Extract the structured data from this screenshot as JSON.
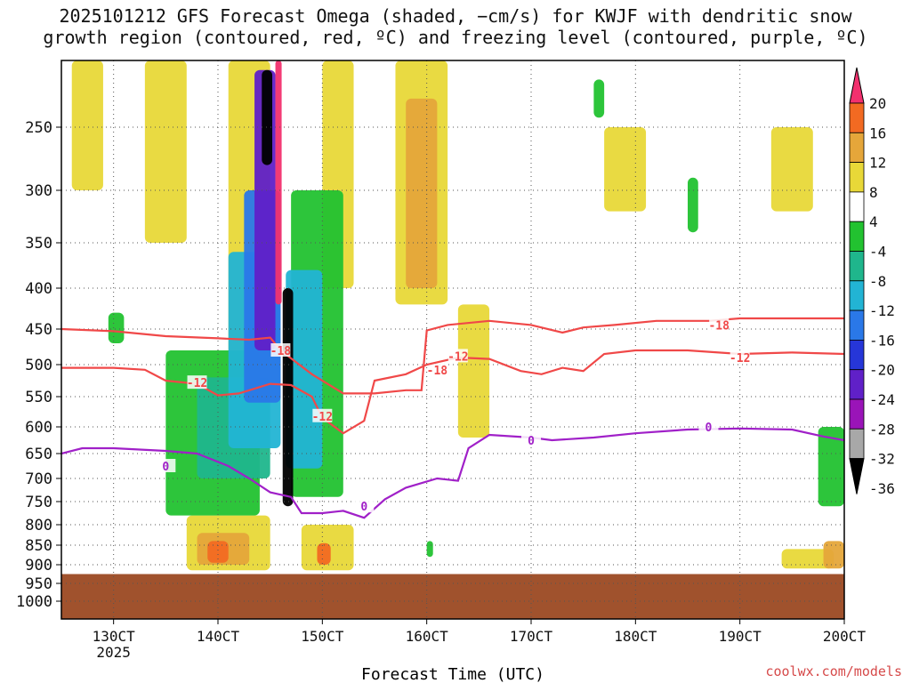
{
  "title_line1": "2025101212 GFS Forecast Omega (shaded, −cm/s) for KWJF with dendritic snow",
  "title_line2": "growth region (contoured, red, ºC) and freezing level (contoured, purple, ºC)",
  "credit": "coolwx.com/models",
  "chart_data": {
    "type": "heatmap",
    "xlabel": "Forecast Time (UTC)",
    "x_range": [
      125,
      200
    ],
    "x_ticks": [
      {
        "value": 130,
        "label": "130CT",
        "sub": "2025"
      },
      {
        "value": 140,
        "label": "140CT"
      },
      {
        "value": 150,
        "label": "150CT"
      },
      {
        "value": 160,
        "label": "160CT"
      },
      {
        "value": 170,
        "label": "170CT"
      },
      {
        "value": 180,
        "label": "180CT"
      },
      {
        "value": 190,
        "label": "190CT"
      },
      {
        "value": 200,
        "label": "200CT"
      }
    ],
    "y_axis": "pressure (hPa), reversed, log-like",
    "y_ticks": [
      250,
      300,
      350,
      400,
      450,
      500,
      550,
      600,
      650,
      700,
      750,
      800,
      850,
      900,
      950,
      1000
    ],
    "grid": "dotted",
    "colorbar": {
      "labels": [
        20,
        16,
        12,
        8,
        4,
        -4,
        -8,
        -12,
        -16,
        -20,
        -24,
        -28,
        -32,
        -36
      ],
      "colors": [
        "#f2306e",
        "#f26a22",
        "#e5a63a",
        "#e8d838",
        "#ffffff",
        "#22c230",
        "#1fb68c",
        "#22b4d4",
        "#2a78e8",
        "#2636d8",
        "#6020c8",
        "#9a14b8",
        "#a8a8a8",
        "#000000"
      ]
    },
    "ground_color": "#a0522d",
    "ground_top_hPa": 925,
    "contours": [
      {
        "name": "-18",
        "color": "#f04848",
        "label_positions": [
          [
            146,
            480
          ],
          [
            161,
            508
          ],
          [
            188,
            445
          ]
        ],
        "points": [
          [
            125,
            450
          ],
          [
            130,
            453
          ],
          [
            135,
            460
          ],
          [
            140,
            463
          ],
          [
            143,
            465
          ],
          [
            145,
            462
          ],
          [
            146,
            480
          ],
          [
            149,
            515
          ],
          [
            152,
            545
          ],
          [
            155,
            545
          ],
          [
            158,
            540
          ],
          [
            159.5,
            540
          ],
          [
            160,
            452
          ],
          [
            162,
            445
          ],
          [
            166,
            440
          ],
          [
            170,
            445
          ],
          [
            173,
            455
          ],
          [
            175,
            448
          ],
          [
            178,
            445
          ],
          [
            182,
            440
          ],
          [
            187,
            440
          ],
          [
            190,
            437
          ],
          [
            196,
            437
          ],
          [
            200,
            437
          ]
        ]
      },
      {
        "name": "-12",
        "color": "#f04848",
        "label_positions": [
          [
            138,
            528
          ],
          [
            150,
            582
          ],
          [
            163,
            488
          ],
          [
            190,
            490
          ]
        ],
        "points": [
          [
            125,
            505
          ],
          [
            130,
            505
          ],
          [
            133,
            508
          ],
          [
            135,
            525
          ],
          [
            138,
            530
          ],
          [
            140,
            548
          ],
          [
            142,
            545
          ],
          [
            145,
            530
          ],
          [
            147,
            532
          ],
          [
            149,
            550
          ],
          [
            150,
            585
          ],
          [
            152,
            612
          ],
          [
            154,
            590
          ],
          [
            155,
            525
          ],
          [
            158,
            515
          ],
          [
            160,
            500
          ],
          [
            163,
            490
          ],
          [
            166,
            492
          ],
          [
            169,
            510
          ],
          [
            171,
            515
          ],
          [
            173,
            505
          ],
          [
            175,
            510
          ],
          [
            177,
            485
          ],
          [
            180,
            480
          ],
          [
            185,
            480
          ],
          [
            190,
            485
          ],
          [
            195,
            483
          ],
          [
            200,
            485
          ]
        ]
      },
      {
        "name": "0",
        "color": "#a020c8",
        "label_positions": [
          [
            135,
            675
          ],
          [
            154,
            760
          ],
          [
            170,
            625
          ],
          [
            187,
            600
          ]
        ],
        "points": [
          [
            125,
            650
          ],
          [
            127,
            640
          ],
          [
            130,
            640
          ],
          [
            135,
            645
          ],
          [
            138,
            650
          ],
          [
            141,
            675
          ],
          [
            143,
            700
          ],
          [
            145,
            730
          ],
          [
            147,
            740
          ],
          [
            148,
            775
          ],
          [
            150,
            775
          ],
          [
            152,
            770
          ],
          [
            154,
            785
          ],
          [
            156,
            745
          ],
          [
            158,
            720
          ],
          [
            161,
            700
          ],
          [
            163,
            705
          ],
          [
            164,
            640
          ],
          [
            166,
            615
          ],
          [
            170,
            620
          ],
          [
            172,
            625
          ],
          [
            176,
            620
          ],
          [
            180,
            612
          ],
          [
            185,
            605
          ],
          [
            190,
            603
          ],
          [
            195,
            605
          ],
          [
            198,
            618
          ],
          [
            200,
            625
          ]
        ]
      }
    ],
    "shaded_regions": [
      {
        "color": "#e8d838",
        "x": [
          126,
          129
        ],
        "p": [
          180,
          300
        ]
      },
      {
        "color": "#e8d838",
        "x": [
          133,
          137
        ],
        "p": [
          180,
          350
        ]
      },
      {
        "color": "#e8d838",
        "x": [
          141,
          145
        ],
        "p": [
          180,
          560
        ]
      },
      {
        "color": "#e8d838",
        "x": [
          150,
          153
        ],
        "p": [
          180,
          400
        ]
      },
      {
        "color": "#e8d838",
        "x": [
          157,
          162
        ],
        "p": [
          180,
          420
        ]
      },
      {
        "color": "#e5a63a",
        "x": [
          158,
          161
        ],
        "p": [
          220,
          400
        ]
      },
      {
        "color": "#e8d838",
        "x": [
          163,
          166
        ],
        "p": [
          420,
          620
        ]
      },
      {
        "color": "#e8d838",
        "x": [
          177,
          181
        ],
        "p": [
          250,
          320
        ]
      },
      {
        "color": "#e8d838",
        "x": [
          193,
          197
        ],
        "p": [
          250,
          320
        ]
      },
      {
        "color": "#e8d838",
        "x": [
          137,
          145
        ],
        "p": [
          780,
          915
        ]
      },
      {
        "color": "#e5a63a",
        "x": [
          138,
          143
        ],
        "p": [
          820,
          900
        ]
      },
      {
        "color": "#f26a22",
        "x": [
          139,
          141
        ],
        "p": [
          840,
          895
        ]
      },
      {
        "color": "#e8d838",
        "x": [
          148,
          153
        ],
        "p": [
          800,
          915
        ]
      },
      {
        "color": "#f26a22",
        "x": [
          149.5,
          150.8
        ],
        "p": [
          845,
          900
        ]
      },
      {
        "color": "#e8d838",
        "x": [
          194,
          199
        ],
        "p": [
          860,
          910
        ]
      },
      {
        "color": "#e5a63a",
        "x": [
          198,
          200
        ],
        "p": [
          840,
          910
        ]
      },
      {
        "color": "#22c230",
        "x": [
          135,
          144
        ],
        "p": [
          480,
          780
        ]
      },
      {
        "color": "#1fb68c",
        "x": [
          138,
          145
        ],
        "p": [
          520,
          700
        ]
      },
      {
        "color": "#22b4d4",
        "x": [
          141,
          146
        ],
        "p": [
          360,
          640
        ]
      },
      {
        "color": "#2a78e8",
        "x": [
          142.5,
          146
        ],
        "p": [
          300,
          560
        ]
      },
      {
        "color": "#6020c8",
        "x": [
          143.5,
          145.5
        ],
        "p": [
          190,
          480
        ]
      },
      {
        "color": "#000000",
        "x": [
          144.2,
          145.2
        ],
        "p": [
          190,
          280
        ]
      },
      {
        "color": "#22c230",
        "x": [
          147,
          152
        ],
        "p": [
          300,
          740
        ]
      },
      {
        "color": "#22b4d4",
        "x": [
          146.5,
          150
        ],
        "p": [
          380,
          680
        ]
      },
      {
        "color": "#000000",
        "x": [
          146.2,
          147.2
        ],
        "p": [
          400,
          760
        ]
      },
      {
        "color": "#f2306e",
        "x": [
          145.5,
          146.1
        ],
        "p": [
          180,
          420
        ]
      },
      {
        "color": "#22c230",
        "x": [
          129.5,
          131
        ],
        "p": [
          430,
          470
        ]
      },
      {
        "color": "#22c230",
        "x": [
          197.5,
          200
        ],
        "p": [
          600,
          760
        ]
      },
      {
        "color": "#22c230",
        "x": [
          160,
          160.6
        ],
        "p": [
          840,
          880
        ]
      },
      {
        "color": "#22c230",
        "x": [
          176,
          177
        ],
        "p": [
          200,
          240
        ]
      },
      {
        "color": "#22c230",
        "x": [
          185,
          186
        ],
        "p": [
          290,
          340
        ]
      }
    ]
  }
}
